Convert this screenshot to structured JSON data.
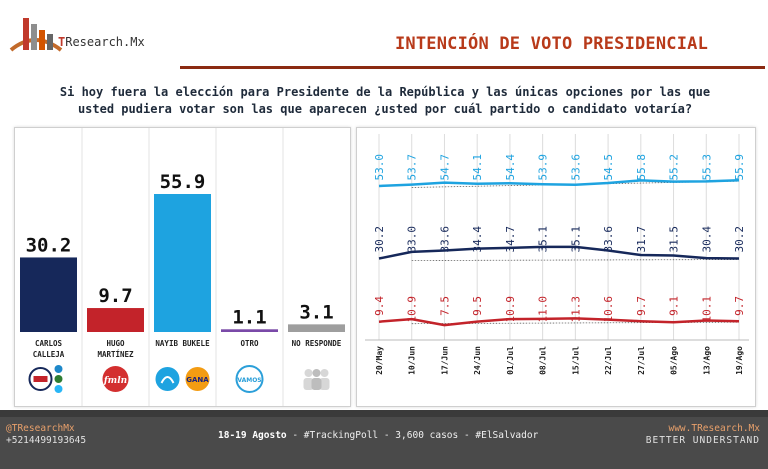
{
  "header": {
    "brand_prefix": "T",
    "brand_rest": "Research.Mx",
    "title": "INTENCIÓN DE VOTO PRESIDENCIAL"
  },
  "question": {
    "line1": "Si hoy fuera la elección para Presidente de la República y las únicas opciones por las que",
    "line2": "usted pudiera votar son las que aparecen ¿usted por cuál partido o candidato votaría?"
  },
  "colors": {
    "bukele": "#1ea3e0",
    "calleja": "#16285a",
    "martinez": "#c3232a",
    "otro": "#7a4aa8",
    "no_responde": "#9e9e9e",
    "accent": "#b83a1a"
  },
  "chart_data": [
    {
      "type": "bar",
      "categories": [
        "CARLOS CALLEJA",
        "HUGO MARTÍNEZ",
        "NAYIB BUKELE",
        "OTRO",
        "NO RESPONDE"
      ],
      "category_lines": [
        [
          "CARLOS",
          "CALLEJA"
        ],
        [
          "HUGO",
          "MARTÍNEZ"
        ],
        [
          "NAYIB BUKELE"
        ],
        [
          "OTRO"
        ],
        [
          "NO RESPONDE"
        ]
      ],
      "values": [
        30.2,
        9.7,
        55.9,
        1.1,
        3.1
      ],
      "value_labels": [
        "30.2",
        "9.7",
        "55.9",
        "1.1",
        "3.1"
      ],
      "colors": [
        "#16285a",
        "#c3232a",
        "#1ea3e0",
        "#7a4aa8",
        "#9e9e9e"
      ],
      "party_logos": [
        [
          "arena-icon",
          "pcn-icon",
          "pdc-icon",
          "dsv-icon"
        ],
        [
          "fmln-icon"
        ],
        [
          "nuevas-ideas-icon",
          "gana-icon"
        ],
        [
          "vamos-icon"
        ],
        [
          "people-icon"
        ]
      ],
      "logo_text": {
        "fmln-icon": "fmln",
        "gana-icon": "GANA",
        "vamos-icon": "VAMOS"
      },
      "ylim": [
        0,
        60
      ]
    },
    {
      "type": "line",
      "x": [
        "20/May",
        "10/Jun",
        "17/Jun",
        "24/Jun",
        "01/Jul",
        "08/Jul",
        "15/Jul",
        "22/Jul",
        "27/Jul",
        "05/Ago",
        "13/Ago",
        "19/Ago"
      ],
      "series": [
        {
          "key": "bukele",
          "values": [
            53.0,
            53.7,
            54.7,
            54.1,
            54.4,
            53.9,
            53.6,
            54.5,
            55.8,
            55.2,
            55.3,
            55.9
          ],
          "labels": [
            "53.0",
            "53.7",
            "54.7",
            "54.1",
            "54.4",
            "53.9",
            "53.6",
            "54.5",
            "55.8",
            "55.2",
            "55.3",
            "55.9"
          ],
          "color": "#1ea3e0"
        },
        {
          "key": "calleja",
          "values": [
            30.2,
            33.0,
            33.6,
            34.4,
            34.7,
            35.1,
            35.1,
            33.6,
            31.7,
            31.5,
            30.4,
            30.2
          ],
          "labels": [
            "30.2",
            "33.0",
            "33.6",
            "34.4",
            "34.7",
            "35.1",
            "35.1",
            "33.6",
            "31.7",
            "31.5",
            "30.4",
            "30.2"
          ],
          "color": "#16285a"
        },
        {
          "key": "martinez",
          "values": [
            9.4,
            10.9,
            7.5,
            9.5,
            10.9,
            11.0,
            11.3,
            10.6,
            9.7,
            9.1,
            10.1,
            9.7
          ],
          "labels": [
            "9.4",
            "10.9",
            "7.5",
            "9.5",
            "10.9",
            "11.0",
            "11.3",
            "10.6",
            "9.7",
            "9.1",
            "10.1",
            "9.7"
          ],
          "color": "#c3232a"
        }
      ],
      "trendlines": true,
      "grid": "vertical"
    }
  ],
  "footer": {
    "twitter": "@TResearchMx",
    "phone": "+5214499193645",
    "date": "18-19 Agosto",
    "summary": " - #TrackingPoll - 3,600 casos - #ElSalvador",
    "website": "www.TResearch.Mx",
    "slogan": "BETTER UNDERSTAND"
  }
}
